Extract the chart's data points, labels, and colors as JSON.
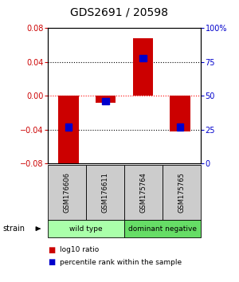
{
  "title": "GDS2691 / 20598",
  "samples": [
    "GSM176606",
    "GSM176611",
    "GSM175764",
    "GSM175765"
  ],
  "log10_ratio": [
    -0.085,
    -0.008,
    0.068,
    -0.042
  ],
  "percentile_rank": [
    27,
    46,
    78,
    27
  ],
  "groups": [
    {
      "label": "wild type",
      "samples": [
        0,
        1
      ],
      "color": "#aaffaa"
    },
    {
      "label": "dominant negative",
      "samples": [
        2,
        3
      ],
      "color": "#66dd66"
    }
  ],
  "ylim_left": [
    -0.08,
    0.08
  ],
  "ylim_right": [
    0,
    100
  ],
  "yticks_left": [
    -0.08,
    -0.04,
    0,
    0.04,
    0.08
  ],
  "yticks_right": [
    0,
    25,
    50,
    75,
    100
  ],
  "ytick_labels_right": [
    "0",
    "25",
    "50",
    "75",
    "100%"
  ],
  "bar_color": "#cc0000",
  "blue_color": "#0000cc",
  "bar_width": 0.55,
  "bg_color": "#ffffff",
  "plot_bg": "#ffffff",
  "left_tick_color": "#cc0000",
  "right_tick_color": "#0000cc",
  "title_fontsize": 10,
  "tick_fontsize": 7,
  "label_box_color": "#cccccc",
  "strain_label": "strain",
  "legend_red_label": "log10 ratio",
  "legend_blue_label": "percentile rank within the sample"
}
